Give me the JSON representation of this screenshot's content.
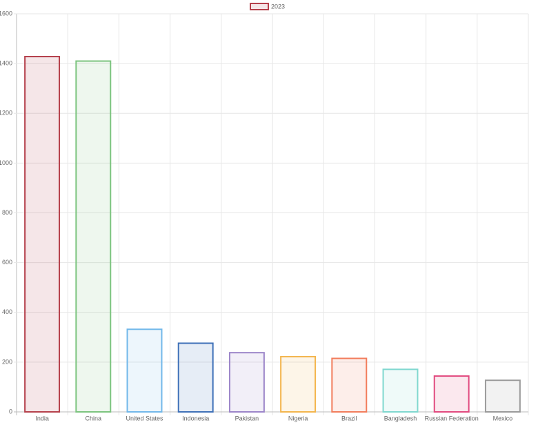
{
  "chart_data": {
    "type": "bar",
    "categories": [
      "India",
      "China",
      "United States",
      "Indonesia",
      "Pakistan",
      "Nigeria",
      "Brazil",
      "Bangladesh",
      "Russian Federation",
      "Mexico"
    ],
    "series": [
      {
        "name": "2023",
        "colors": [
          "#b5404b",
          "#7cc47f",
          "#72b8ea",
          "#3f71b8",
          "#9c85c9",
          "#f3b54d",
          "#f27d5c",
          "#80d8cf",
          "#e14a7f",
          "#9b9b9b"
        ],
        "values": [
          1428,
          1410,
          332,
          276,
          238,
          222,
          215,
          171,
          144,
          127
        ]
      }
    ],
    "ylim": [
      0,
      1600
    ],
    "yticks": [
      0,
      200,
      400,
      600,
      800,
      1000,
      1200,
      1400,
      1600
    ],
    "grid": true,
    "legend": "top"
  }
}
